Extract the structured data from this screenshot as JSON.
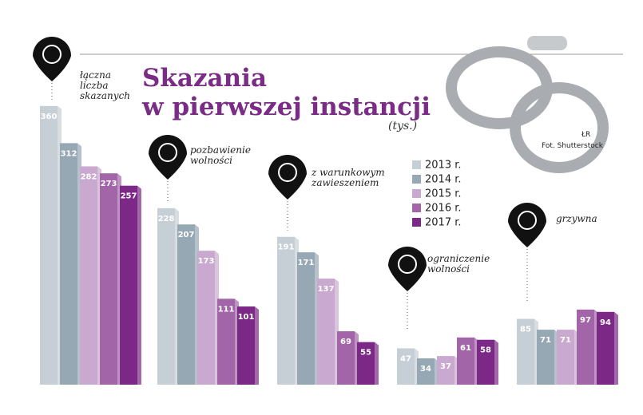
{
  "chart_data": {
    "type": "bar",
    "title": "Skazania\nw pierwszej instancji",
    "subtitle": "(tys.)",
    "credit_agency": "ŁR",
    "credit_photo": "Fot. Shutterstock",
    "categories": [
      "łączna\nliczba\nskazanych",
      "pozbawienie\nwolności",
      "z warunkowym\nzawieszeniem",
      "ograniczenie\nwolności",
      "grzywna"
    ],
    "series": [
      {
        "name": "2013 r.",
        "color": "#c7cfd6",
        "values": [
          360,
          228,
          191,
          47,
          85
        ]
      },
      {
        "name": "2014 r.",
        "color": "#97a8b5",
        "values": [
          312,
          207,
          171,
          34,
          71
        ]
      },
      {
        "name": "2015 r.",
        "color": "#c9a9cf",
        "values": [
          282,
          173,
          137,
          37,
          71
        ]
      },
      {
        "name": "2016 r.",
        "color": "#a266a8",
        "values": [
          273,
          111,
          69,
          61,
          97
        ]
      },
      {
        "name": "2017 r.",
        "color": "#7b2886",
        "values": [
          257,
          101,
          55,
          58,
          94
        ]
      }
    ]
  }
}
